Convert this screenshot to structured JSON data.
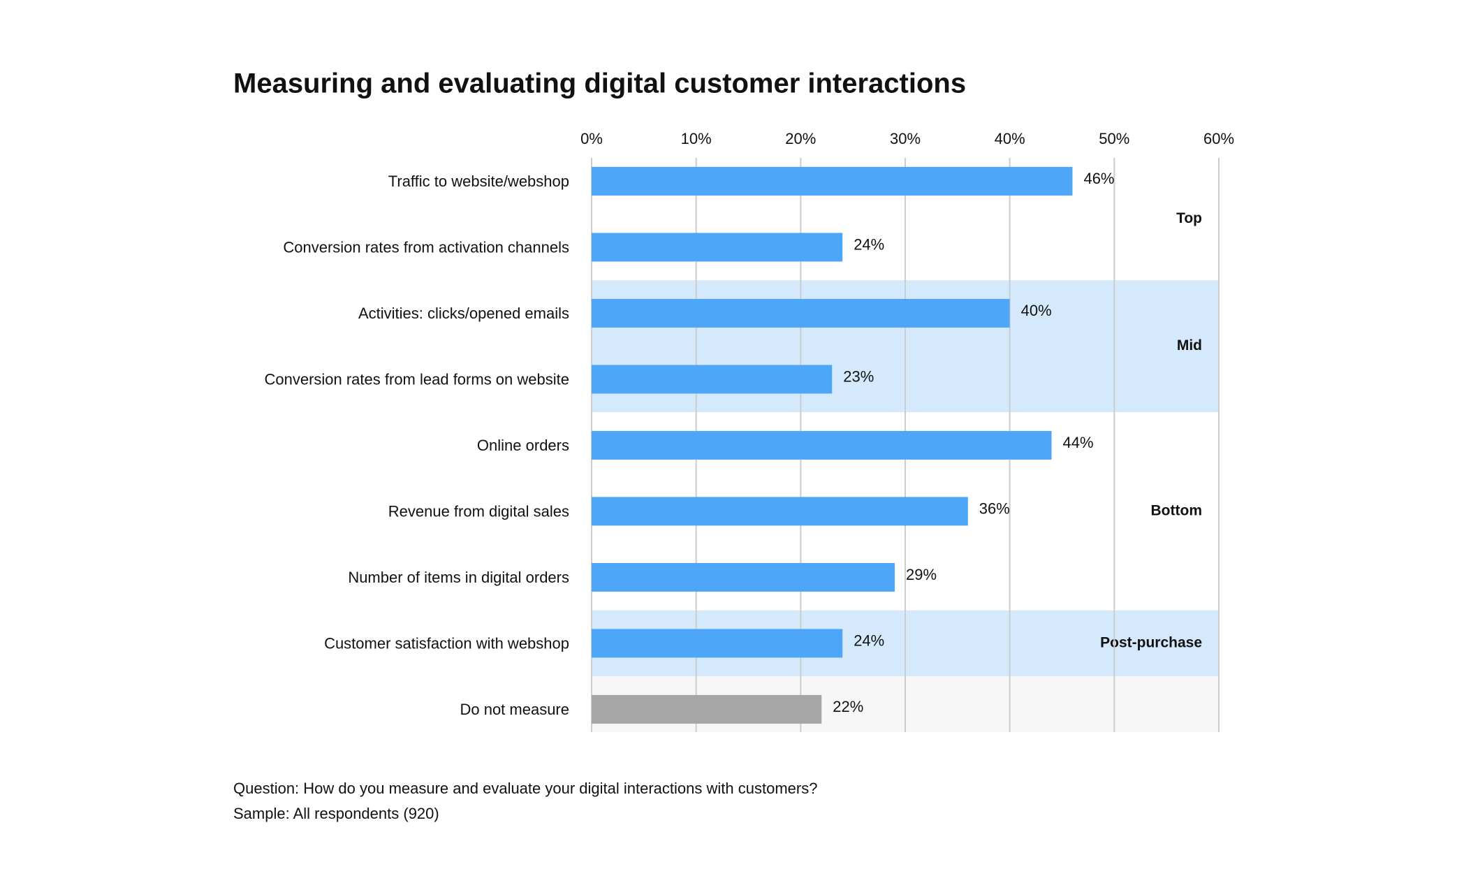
{
  "chart_data": {
    "type": "bar",
    "orientation": "horizontal",
    "title": "Measuring and evaluating digital customer interactions",
    "categories": [
      "Traffic to website/webshop",
      "Conversion rates from activation channels",
      "Activities: clicks/opened emails",
      "Conversion rates from lead forms on website",
      "Online orders",
      "Revenue from digital sales",
      "Number of items in digital orders",
      "Customer satisfaction with webshop",
      "Do not measure"
    ],
    "values": [
      46,
      24,
      40,
      23,
      44,
      36,
      29,
      24,
      22
    ],
    "value_labels": [
      "46%",
      "24%",
      "40%",
      "23%",
      "44%",
      "36%",
      "29%",
      "24%",
      "22%"
    ],
    "colors": [
      "#4da6f7",
      "#4da6f7",
      "#4da6f7",
      "#4da6f7",
      "#4da6f7",
      "#4da6f7",
      "#4da6f7",
      "#4da6f7",
      "#a6a6a6"
    ],
    "xlim": [
      0,
      60
    ],
    "xticks": [
      {
        "value": 0,
        "label": "0%"
      },
      {
        "value": 10,
        "label": "10%"
      },
      {
        "value": 20,
        "label": "20%"
      },
      {
        "value": 30,
        "label": "30%"
      },
      {
        "value": 40,
        "label": "40%"
      },
      {
        "value": 50,
        "label": "50%"
      },
      {
        "value": 60,
        "label": "60%"
      }
    ],
    "grid": true,
    "groups": [
      {
        "label": "Top",
        "size": 2,
        "color": "#ffffff"
      },
      {
        "label": "Mid",
        "size": 2,
        "color": "#d4eafc"
      },
      {
        "label": "Bottom",
        "size": 3,
        "color": "#ffffff"
      },
      {
        "label": "Post-purchase",
        "size": 1,
        "color": "#d4eafc"
      },
      {
        "size": 1,
        "color": "#f7f7f7"
      }
    ],
    "notes": [
      "Question: How do you measure and evaluate your digital interactions with customers?",
      "Sample: All respondents (920)"
    ]
  }
}
